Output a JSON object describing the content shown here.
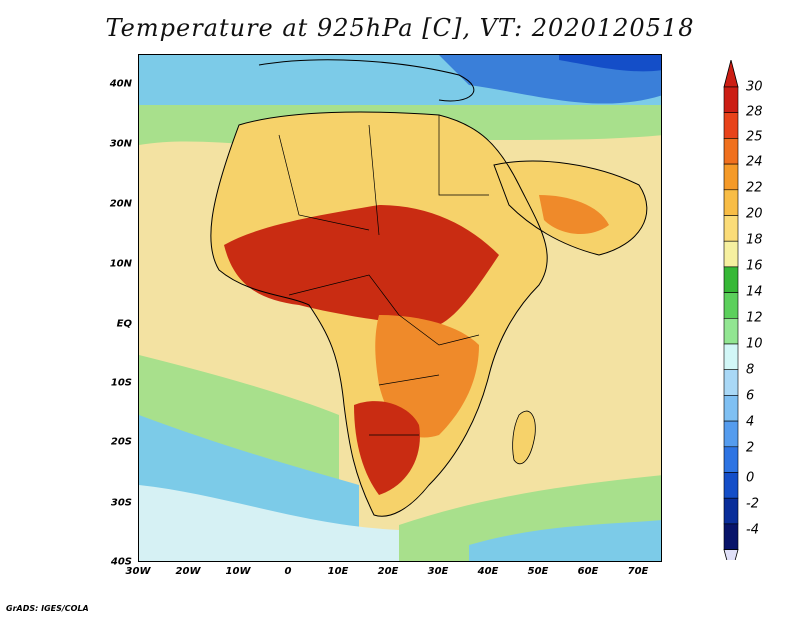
{
  "title": "Temperature at 925hPa [C], VT: 2020120518",
  "credit": "GrADS: IGES/COLA",
  "map": {
    "variable": "Temperature at 925hPa",
    "unit": "C",
    "valid_time": "2020120518",
    "lon_range": [
      -30,
      75
    ],
    "lat_range": [
      -40,
      45
    ],
    "lon_ticks": [
      "30W",
      "20W",
      "10W",
      "0",
      "10E",
      "20E",
      "30E",
      "40E",
      "50E",
      "60E",
      "70E"
    ],
    "lat_ticks": [
      "40N",
      "30N",
      "20N",
      "10N",
      "EQ",
      "10S",
      "20S",
      "30S",
      "40S"
    ]
  },
  "colorbar": {
    "labels": [
      "30",
      "28",
      "25",
      "24",
      "22",
      "20",
      "18",
      "16",
      "14",
      "12",
      "10",
      "8",
      "6",
      "4",
      "2",
      "0",
      "-2",
      "-4"
    ],
    "colors": [
      "#cc1e14",
      "#e8431a",
      "#f0701e",
      "#f59a28",
      "#f8bd46",
      "#fbdc78",
      "#f6f0a0",
      "#36b836",
      "#5cd05c",
      "#92e692",
      "#d2f7f7",
      "#a9d8f6",
      "#7fc0f3",
      "#559cee",
      "#2e74e3",
      "#144ec8",
      "#0a2e9a",
      "#08146a"
    ],
    "top_arrow_color": "#cc1e14",
    "bottom_arrow_color": "#e0e0f8"
  },
  "colors": {
    "land_hot": "#c92c12",
    "land_warm": "#ef8a2a",
    "land_mild": "#f6d26a",
    "sea_tropical": "#f3e2a2",
    "sea_subtropical": "#a8e08c",
    "sea_cool": "#7ccbe8",
    "sea_cold": "#d6f1f4",
    "cold_north": "#3a7fd9"
  }
}
